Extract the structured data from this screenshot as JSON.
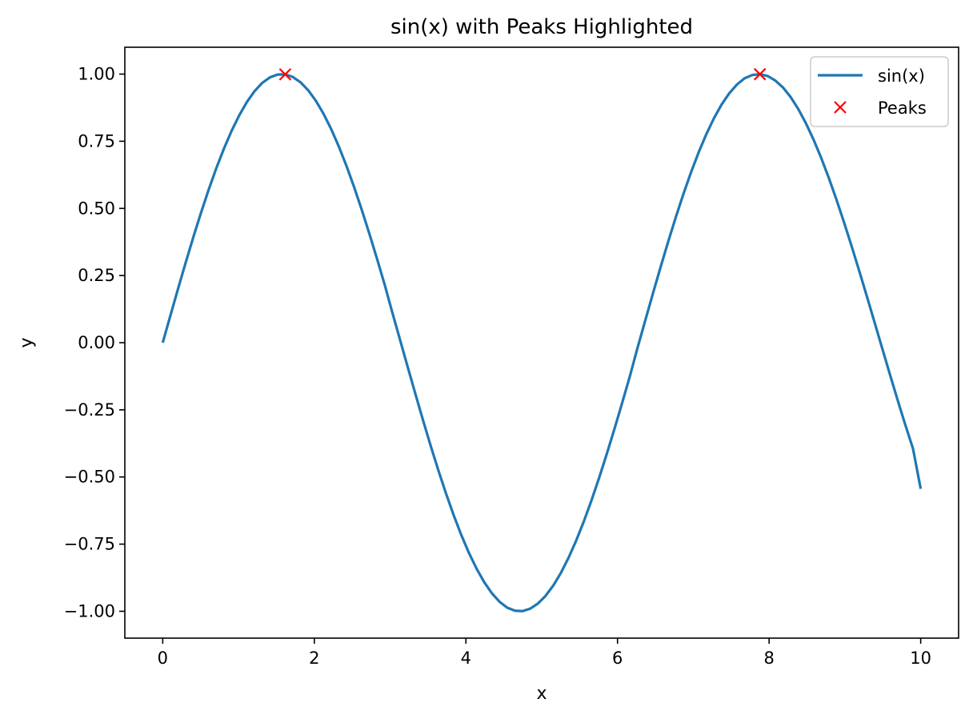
{
  "chart_data": {
    "type": "line",
    "title": "sin(x) with Peaks Highlighted",
    "xlabel": "x",
    "ylabel": "y",
    "xlim": [
      -0.5,
      10.5
    ],
    "ylim": [
      -1.1,
      1.1
    ],
    "xticks": [
      0,
      2,
      4,
      6,
      8,
      10
    ],
    "xtick_labels": [
      "0",
      "2",
      "4",
      "6",
      "8",
      "10"
    ],
    "yticks": [
      1.0,
      0.75,
      0.5,
      0.25,
      0.0,
      -0.25,
      -0.5,
      -0.75,
      -1.0
    ],
    "ytick_labels": [
      "1.00",
      "0.75",
      "0.50",
      "0.25",
      "0.00",
      "−0.25",
      "−0.50",
      "−0.75",
      "−1.00"
    ],
    "grid": false,
    "legend_position": "top-right",
    "series": [
      {
        "name": "sin(x)",
        "kind": "line",
        "color": "#1f77b4",
        "x": [
          0.0,
          0.101,
          0.202,
          0.303,
          0.404,
          0.505,
          0.606,
          0.707,
          0.808,
          0.909,
          1.01,
          1.111,
          1.212,
          1.313,
          1.414,
          1.515,
          1.616,
          1.717,
          1.818,
          1.919,
          2.02,
          2.121,
          2.222,
          2.323,
          2.424,
          2.525,
          2.626,
          2.727,
          2.828,
          2.929,
          3.03,
          3.131,
          3.232,
          3.333,
          3.434,
          3.535,
          3.636,
          3.737,
          3.838,
          3.939,
          4.04,
          4.141,
          4.242,
          4.343,
          4.444,
          4.545,
          4.646,
          4.747,
          4.848,
          4.949,
          5.051,
          5.152,
          5.253,
          5.354,
          5.455,
          5.556,
          5.657,
          5.758,
          5.859,
          5.96,
          6.061,
          6.162,
          6.263,
          6.364,
          6.465,
          6.566,
          6.667,
          6.768,
          6.869,
          6.97,
          7.071,
          7.172,
          7.273,
          7.374,
          7.475,
          7.576,
          7.677,
          7.778,
          7.879,
          7.98,
          8.081,
          8.182,
          8.283,
          8.384,
          8.485,
          8.586,
          8.687,
          8.788,
          8.889,
          8.99,
          9.091,
          9.192,
          9.293,
          9.394,
          9.495,
          9.596,
          9.697,
          9.798,
          9.899,
          10.0
        ],
        "y": [
          0.0,
          0.1008,
          0.2006,
          0.2984,
          0.3931,
          0.4838,
          0.5696,
          0.6496,
          0.7229,
          0.7889,
          0.8469,
          0.8963,
          0.9366,
          0.9673,
          0.9878,
          0.9983,
          0.999,
          0.9893,
          0.9695,
          0.9398,
          0.9008,
          0.8524,
          0.7955,
          0.7305,
          0.6582,
          0.5793,
          0.4946,
          0.4051,
          0.3116,
          0.2153,
          0.1113,
          0.0106,
          -0.0905,
          -0.1904,
          -0.2886,
          -0.3838,
          -0.4749,
          -0.5613,
          -0.6419,
          -0.716,
          -0.7828,
          -0.8415,
          -0.8918,
          -0.9331,
          -0.9646,
          -0.9866,
          -0.9979,
          -0.9993,
          -0.9903,
          -0.9715,
          -0.9426,
          -0.9044,
          -0.8571,
          -0.8007,
          -0.7366,
          -0.6652,
          -0.5868,
          -0.5028,
          -0.4137,
          -0.3207,
          -0.2246,
          -0.1261,
          -0.0202,
          0.0808,
          0.1809,
          0.2792,
          0.3747,
          0.4663,
          0.5532,
          0.6343,
          0.709,
          0.7765,
          0.836,
          0.887,
          0.9288,
          0.9612,
          0.9844,
          0.9966,
          0.9996,
          0.9929,
          0.9762,
          0.9504,
          0.915,
          0.8703,
          0.8173,
          0.7564,
          0.6881,
          0.6132,
          0.5324,
          0.4468,
          0.3572,
          0.2644,
          0.1695,
          0.0732,
          -0.0238,
          -0.1202,
          -0.2149,
          -0.3069,
          -0.3951,
          -0.544
        ]
      },
      {
        "name": "Peaks",
        "kind": "marker",
        "marker": "x",
        "color": "#ff0000",
        "x": [
          1.616,
          7.879
        ],
        "y": [
          0.999,
          0.9996
        ]
      }
    ]
  }
}
